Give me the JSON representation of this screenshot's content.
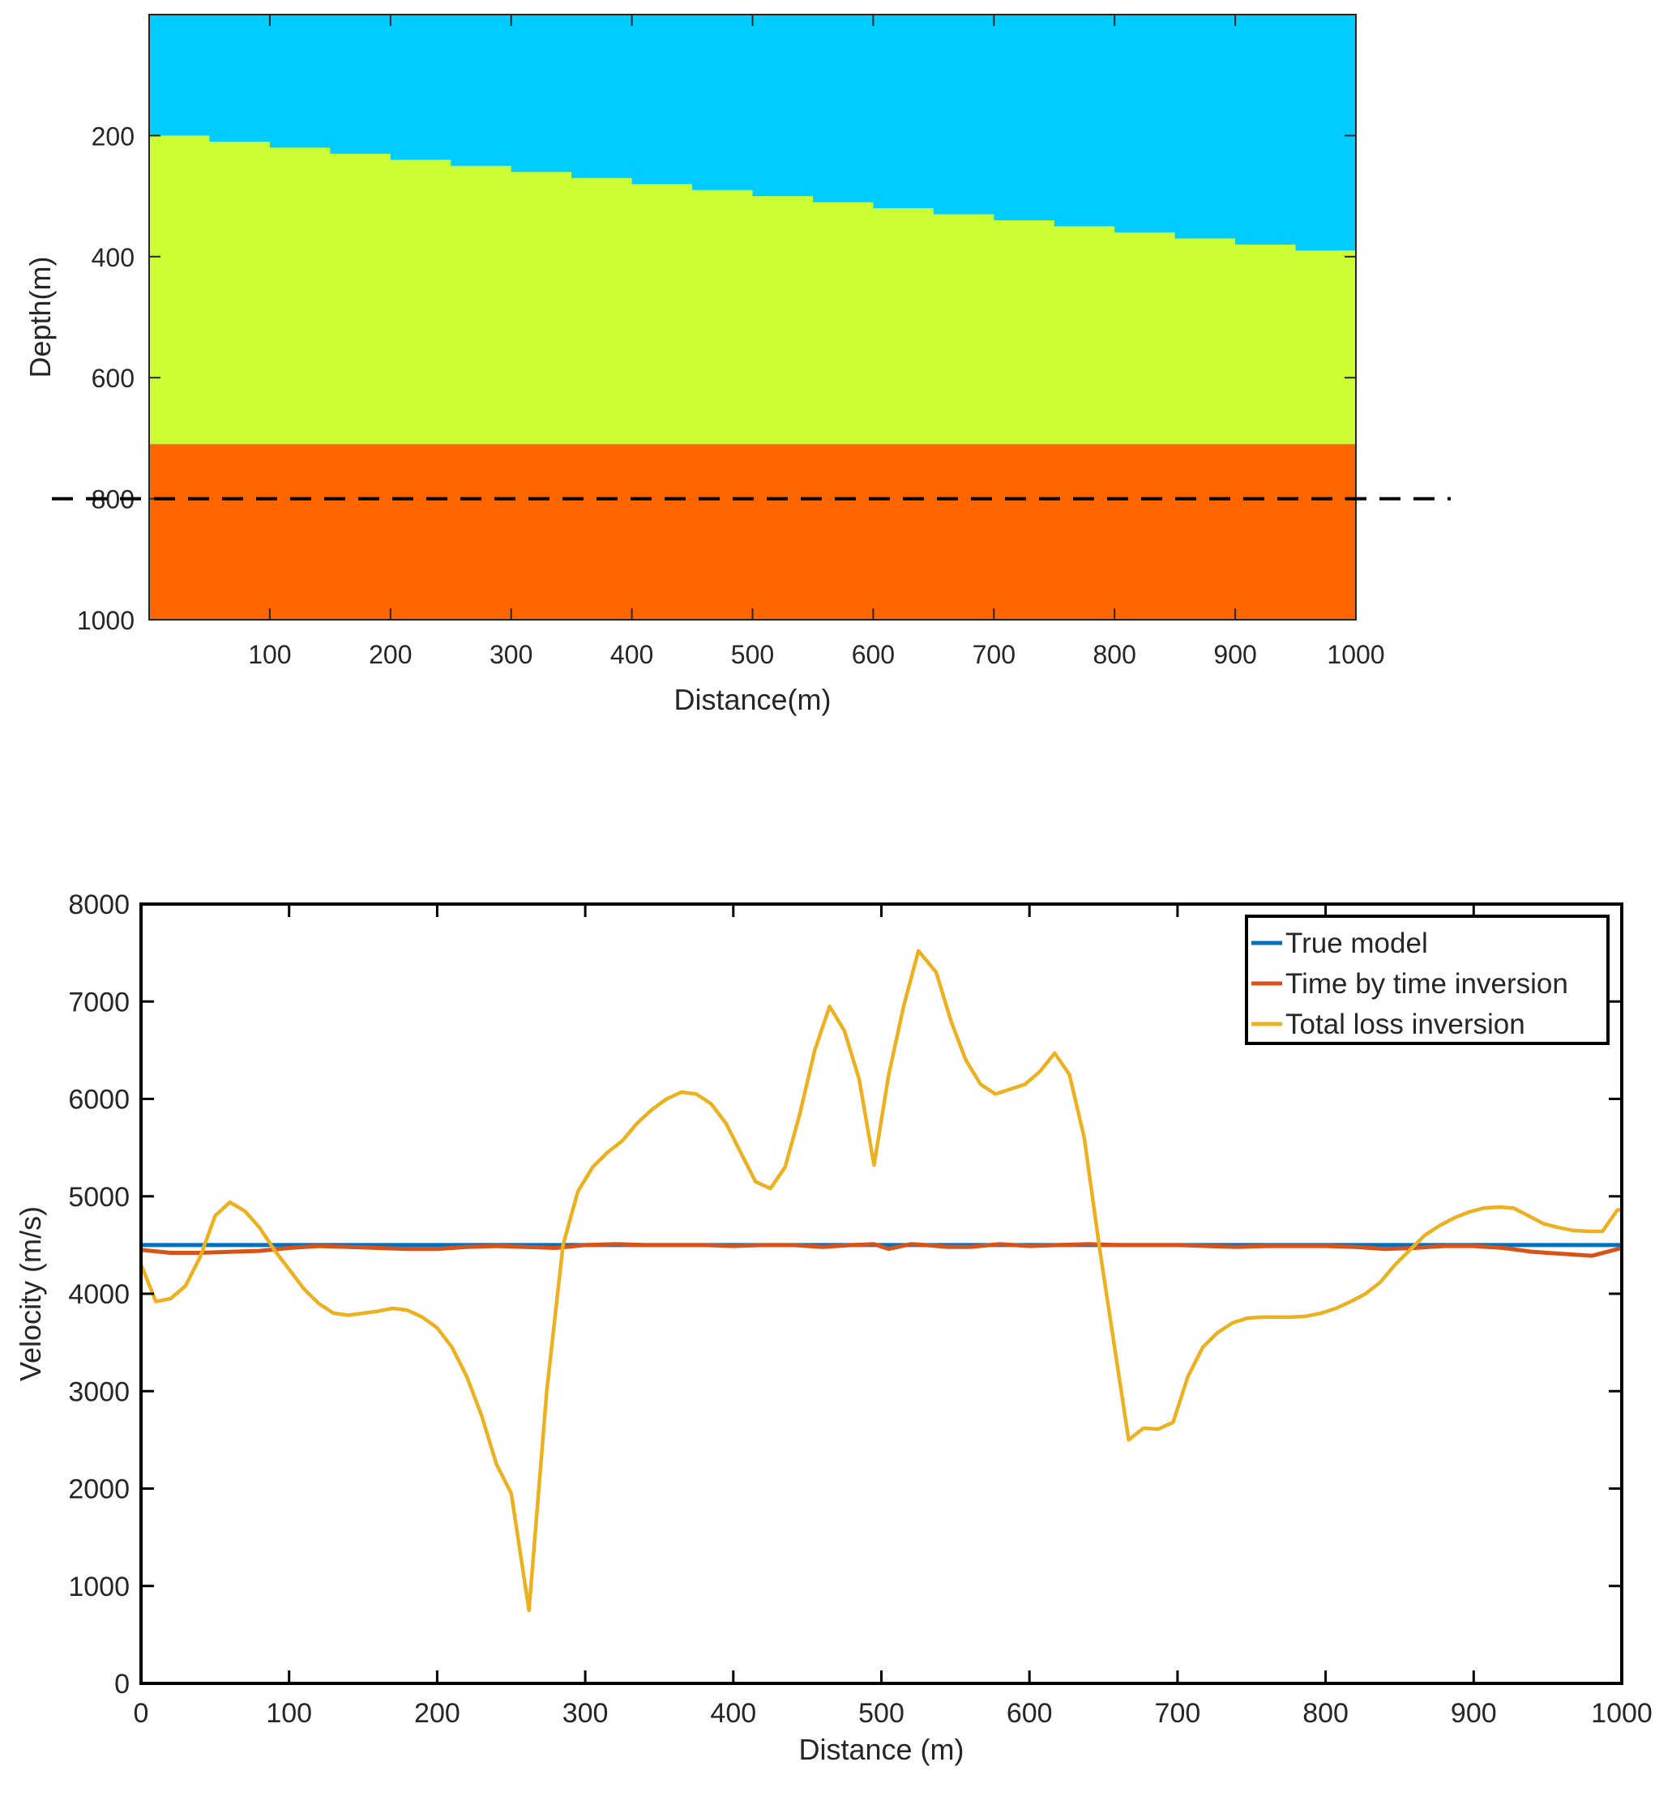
{
  "chart_data": [
    {
      "type": "heatmap",
      "title": "",
      "xlabel": "Distance(m)",
      "ylabel": "Depth(m)",
      "xlim": [
        0,
        1000
      ],
      "ylim": [
        0,
        1000
      ],
      "y_reversed": true,
      "xticks": [
        100,
        200,
        300,
        400,
        500,
        600,
        700,
        800,
        900,
        1000
      ],
      "yticks": [
        200,
        400,
        600,
        800,
        1000
      ],
      "layers": [
        {
          "name": "upper layer",
          "color": "#00ccff"
        },
        {
          "name": "middle layer",
          "color": "#ccff33"
        },
        {
          "name": "lower layer",
          "color": "#ff6600"
        }
      ],
      "interface_top": {
        "x": [
          0,
          1000
        ],
        "depth": [
          200,
          400
        ],
        "stepped": true,
        "step_m": 50
      },
      "interface_bottom": {
        "depth": 710
      },
      "dashed_line_depth": 800
    },
    {
      "type": "line",
      "title": "",
      "xlabel": "Distance (m)",
      "ylabel": "Velocity (m/s)",
      "xlim": [
        0,
        1000
      ],
      "ylim": [
        0,
        8000
      ],
      "xticks": [
        0,
        100,
        200,
        300,
        400,
        500,
        600,
        700,
        800,
        900,
        1000
      ],
      "yticks": [
        0,
        1000,
        2000,
        3000,
        4000,
        5000,
        6000,
        7000,
        8000
      ],
      "legend_position": "top-right",
      "series": [
        {
          "name": "True model",
          "color": "#0072bd",
          "x": [
            0,
            1000
          ],
          "y": [
            4500,
            4500
          ]
        },
        {
          "name": "Time by time inversion",
          "color": "#d95319",
          "x": [
            0,
            20,
            40,
            60,
            80,
            100,
            120,
            140,
            160,
            180,
            200,
            220,
            240,
            260,
            280,
            300,
            320,
            340,
            360,
            380,
            400,
            420,
            440,
            460,
            480,
            495,
            505,
            520,
            530,
            545,
            560,
            580,
            600,
            620,
            640,
            660,
            680,
            700,
            720,
            740,
            760,
            780,
            800,
            820,
            840,
            860,
            880,
            900,
            920,
            940,
            960,
            980,
            1000
          ],
          "y": [
            4450,
            4420,
            4420,
            4430,
            4440,
            4470,
            4490,
            4480,
            4470,
            4460,
            4460,
            4480,
            4490,
            4480,
            4470,
            4500,
            4510,
            4500,
            4500,
            4500,
            4490,
            4500,
            4500,
            4480,
            4500,
            4510,
            4460,
            4510,
            4500,
            4480,
            4480,
            4510,
            4490,
            4500,
            4510,
            4500,
            4500,
            4500,
            4490,
            4480,
            4490,
            4490,
            4490,
            4480,
            4460,
            4470,
            4490,
            4490,
            4470,
            4430,
            4410,
            4390,
            4470
          ]
        },
        {
          "name": "Total loss inversion",
          "color": "#edb120",
          "x": [
            0,
            10,
            20,
            30,
            40,
            50,
            60,
            70,
            80,
            90,
            100,
            110,
            120,
            130,
            140,
            150,
            160,
            170,
            180,
            190,
            200,
            210,
            220,
            230,
            240,
            250,
            262,
            274,
            285,
            295,
            305,
            315,
            325,
            335,
            345,
            355,
            365,
            375,
            385,
            395,
            405,
            415,
            425,
            435,
            445,
            455,
            465,
            475,
            485,
            495,
            505,
            515,
            525,
            537,
            547,
            557,
            567,
            577,
            587,
            597,
            607,
            617,
            627,
            637,
            647,
            657,
            667,
            677,
            687,
            697,
            707,
            717,
            727,
            737,
            747,
            757,
            767,
            777,
            787,
            797,
            807,
            817,
            827,
            837,
            847,
            857,
            867,
            877,
            887,
            897,
            907,
            917,
            927,
            937,
            947,
            957,
            967,
            977,
            987,
            997,
            1000
          ],
          "y": [
            4300,
            3920,
            3950,
            4080,
            4380,
            4800,
            4940,
            4850,
            4680,
            4450,
            4250,
            4050,
            3900,
            3800,
            3780,
            3800,
            3820,
            3850,
            3830,
            3760,
            3650,
            3450,
            3150,
            2750,
            2250,
            1950,
            750,
            3000,
            4500,
            5050,
            5300,
            5450,
            5570,
            5750,
            5890,
            6000,
            6070,
            6050,
            5950,
            5750,
            5450,
            5150,
            5080,
            5300,
            5850,
            6500,
            6950,
            6700,
            6200,
            5320,
            6250,
            6950,
            7520,
            7300,
            6800,
            6400,
            6150,
            6050,
            6100,
            6150,
            6280,
            6470,
            6250,
            5600,
            4500,
            3500,
            2500,
            2620,
            2610,
            2680,
            3150,
            3450,
            3600,
            3700,
            3750,
            3760,
            3760,
            3760,
            3770,
            3800,
            3850,
            3920,
            4000,
            4120,
            4300,
            4450,
            4600,
            4700,
            4780,
            4840,
            4880,
            4890,
            4880,
            4800,
            4720,
            4680,
            4650,
            4640,
            4640,
            4860,
            4860
          ]
        }
      ]
    }
  ]
}
